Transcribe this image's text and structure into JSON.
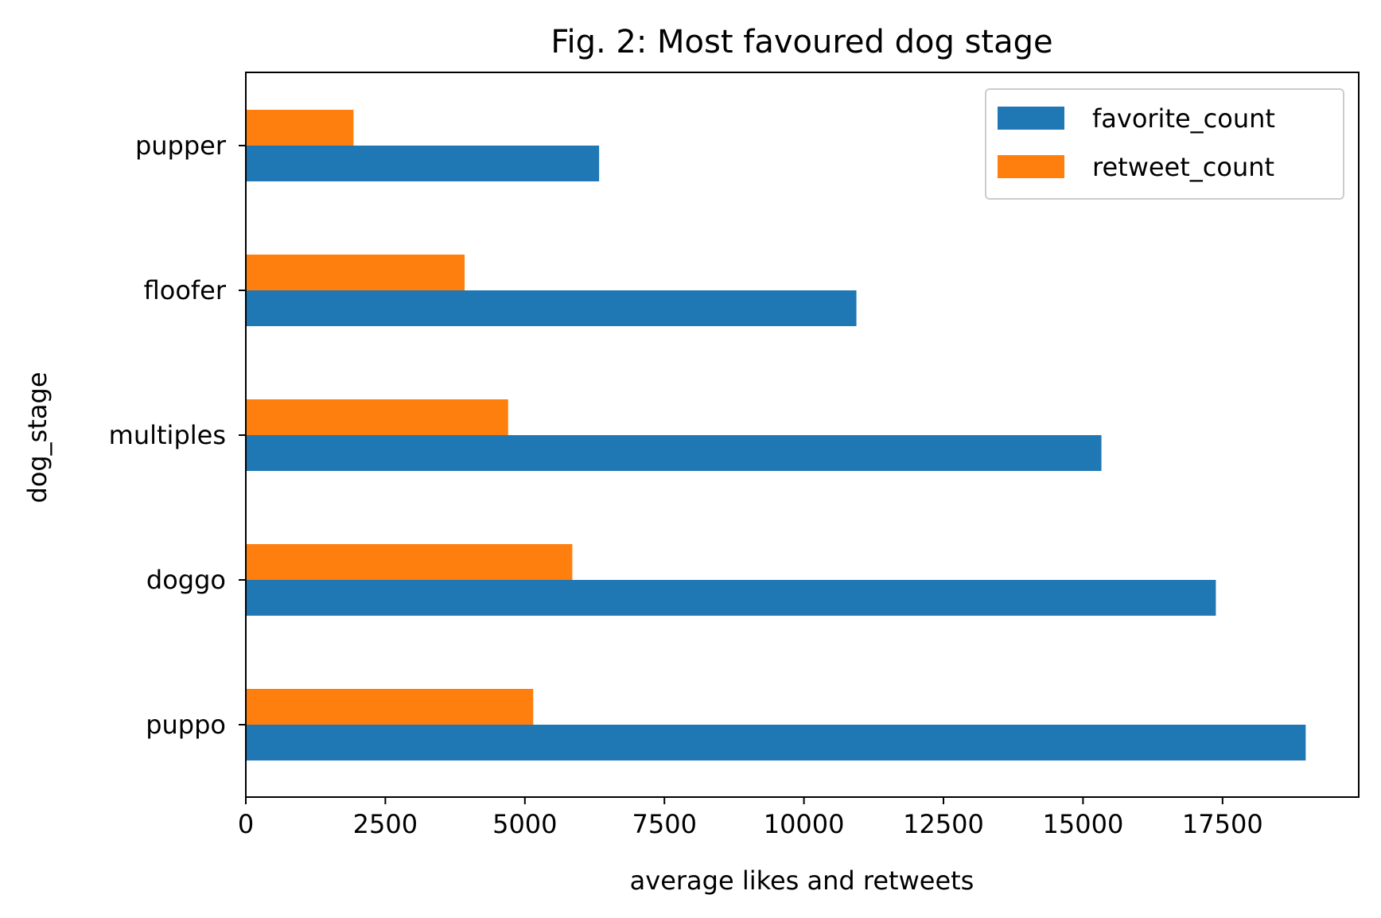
{
  "chart_data": {
    "type": "bar",
    "orientation": "horizontal",
    "title": "Fig. 2: Most favoured dog stage",
    "xlabel": "average likes and retweets",
    "ylabel": "dog_stage",
    "categories": [
      "pupper",
      "floofer",
      "multiples",
      "doggo",
      "puppo"
    ],
    "series": [
      {
        "name": "favorite_count",
        "values": [
          6330,
          10940,
          15330,
          17380,
          18990
        ],
        "color": "#1f77b4"
      },
      {
        "name": "retweet_count",
        "values": [
          1930,
          3920,
          4700,
          5850,
          5150
        ],
        "color": "#ff7f0e"
      }
    ],
    "xlim": [
      0,
      19940
    ],
    "xticks": [
      0,
      2500,
      5000,
      7500,
      10000,
      12500,
      15000,
      17500
    ],
    "xtick_labels": [
      "0",
      "2500",
      "5000",
      "7500",
      "10000",
      "12500",
      "15000",
      "17500"
    ],
    "grid": false,
    "legend_position": "top-right"
  }
}
